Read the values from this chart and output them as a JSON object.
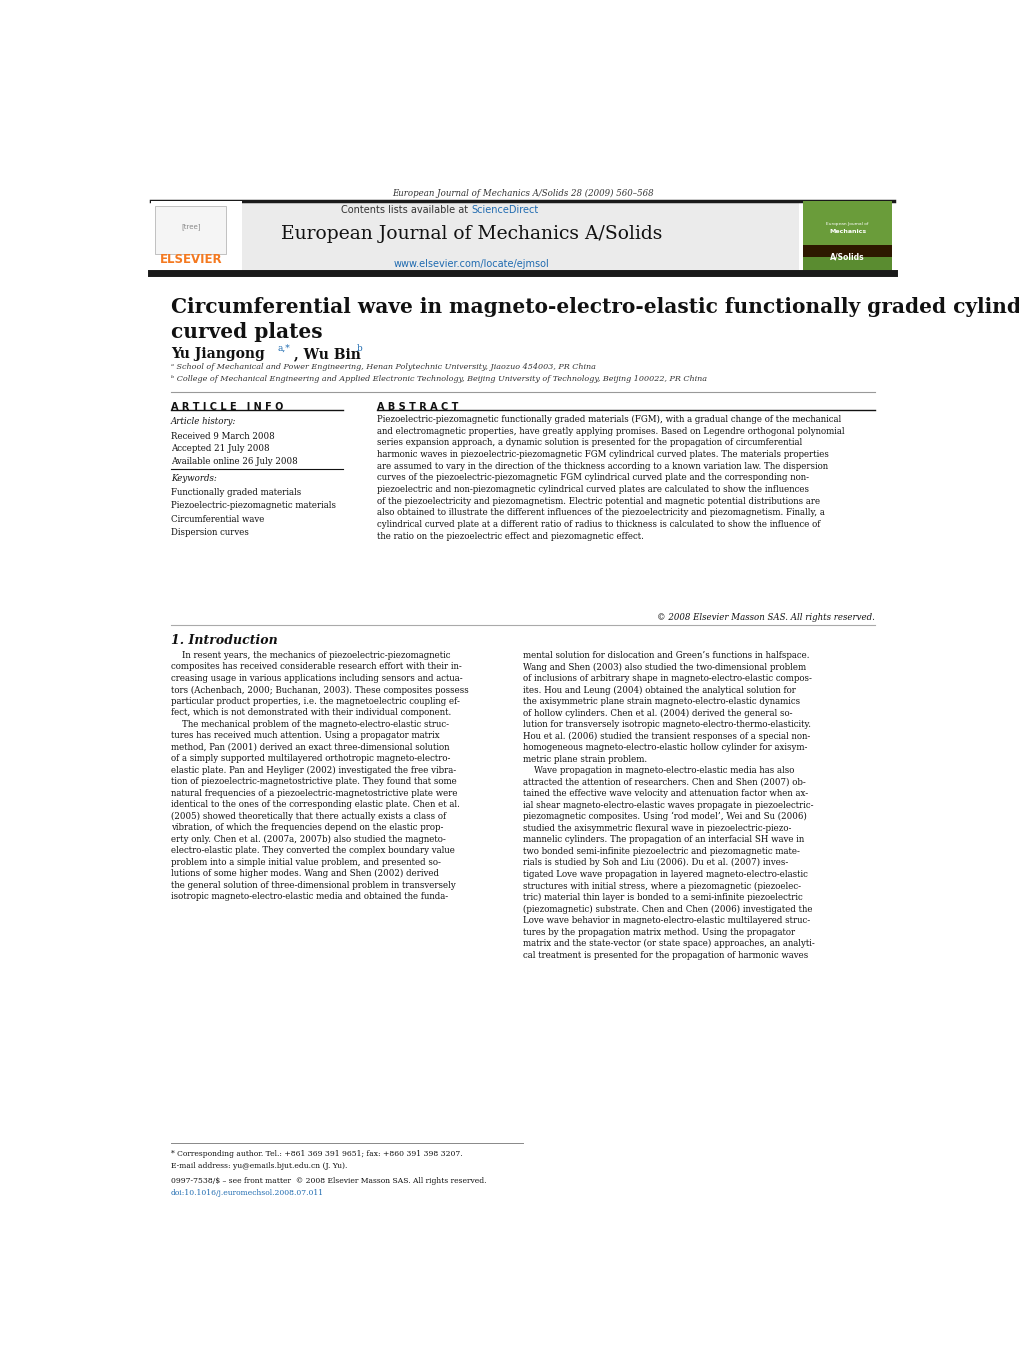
{
  "journal_header_text": "European Journal of Mechanics A/Solids 28 (2009) 560–568",
  "contents_text": "Contents lists available at ScienceDirect",
  "journal_title": "European Journal of Mechanics A/Solids",
  "journal_url": "www.elsevier.com/locate/ejmsol",
  "paper_title": "Circumferential wave in magneto-electro-elastic functionally graded cylindrical\ncurved plates",
  "authors": "Yu Jiangong",
  "authors2": "Wu Bin",
  "author_superscripts": "a,*",
  "author2_superscripts": "b",
  "affil_a": "ᵃ School of Mechanical and Power Engineering, Henan Polytechnic University, Jiaozuo 454003, PR China",
  "affil_b": "ᵇ College of Mechanical Engineering and Applied Electronic Technology, Beijing University of Technology, Beijing 100022, PR China",
  "section_article_info": "A R T I C L E   I N F O",
  "section_abstract": "A B S T R A C T",
  "article_history_label": "Article history:",
  "received": "Received 9 March 2008",
  "accepted": "Accepted 21 July 2008",
  "available": "Available online 26 July 2008",
  "keywords_label": "Keywords:",
  "keyword1": "Functionally graded materials",
  "keyword2": "Piezoelectric-piezomagnetic materials",
  "keyword3": "Circumferential wave",
  "keyword4": "Dispersion curves",
  "abstract_text": "Piezoelectric-piezomagnetic functionally graded materials (FGM), with a gradual change of the mechanical\nand electromagnetic properties, have greatly applying promises. Based on Legendre orthogonal polynomial\nseries expansion approach, a dynamic solution is presented for the propagation of circumferential\nharmonic waves in piezoelectric-piezomagnetic FGM cylindrical curved plates. The materials properties\nare assumed to vary in the direction of the thickness according to a known variation law. The dispersion\ncurves of the piezoelectric-piezomagnetic FGM cylindrical curved plate and the corresponding non-\npiezoelectric and non-piezomagnetic cylindrical curved plates are calculated to show the influences\nof the piezoelectricity and piezomagnetism. Electric potential and magnetic potential distributions are\nalso obtained to illustrate the different influences of the piezoelectricity and piezomagnetism. Finally, a\ncylindrical curved plate at a different ratio of radius to thickness is calculated to show the influence of\nthe ratio on the piezoelectric effect and piezomagnetic effect.",
  "copyright_text": "© 2008 Elsevier Masson SAS. All rights reserved.",
  "intro_title": "1. Introduction",
  "footnote_text": "* Corresponding author. Tel.: +861 369 391 9651; fax: +860 391 398 3207.",
  "footnote_email": "E-mail address: yu@emails.bjut.edu.cn (J. Yu).",
  "footer_text": "0997-7538/$ – see front matter  © 2008 Elsevier Masson SAS. All rights reserved.",
  "doi_text": "doi:10.1016/j.euromechsol.2008.07.011",
  "bg_color": "#ffffff",
  "black_bar_color": "#1a1a1a",
  "elsevier_orange": "#f47920",
  "sciencedirect_blue": "#1f6bb0",
  "url_blue": "#1f6bb0"
}
